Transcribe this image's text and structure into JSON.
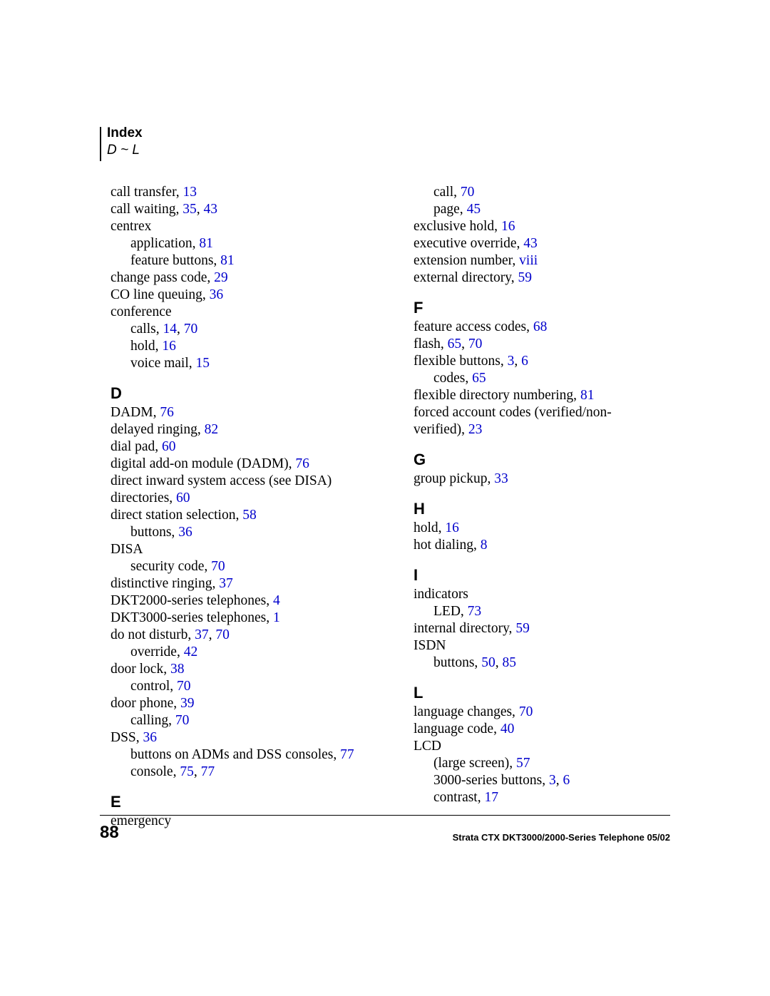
{
  "link_color": "#0000cc",
  "text_color": "#000000",
  "header": {
    "title": "Index",
    "range": "D ~ L"
  },
  "footer": {
    "page_number": "88",
    "doc": "Strata CTX DKT3000/2000-Series Telephone    05/02"
  },
  "left": [
    {
      "t": "entry",
      "parts": [
        [
          "call transfer,  ",
          false
        ],
        [
          "13",
          true
        ]
      ]
    },
    {
      "t": "entry",
      "parts": [
        [
          "call waiting,  ",
          false
        ],
        [
          "35",
          true
        ],
        [
          ", ",
          false
        ],
        [
          "43",
          true
        ]
      ]
    },
    {
      "t": "entry",
      "parts": [
        [
          "centrex",
          false
        ]
      ]
    },
    {
      "t": "entry",
      "indent": 1,
      "parts": [
        [
          "application,  ",
          false
        ],
        [
          "81",
          true
        ]
      ]
    },
    {
      "t": "entry",
      "indent": 1,
      "parts": [
        [
          "feature buttons,  ",
          false
        ],
        [
          "81",
          true
        ]
      ]
    },
    {
      "t": "entry",
      "parts": [
        [
          "change pass code,  ",
          false
        ],
        [
          "29",
          true
        ]
      ]
    },
    {
      "t": "entry",
      "parts": [
        [
          "CO line queuing,  ",
          false
        ],
        [
          "36",
          true
        ]
      ]
    },
    {
      "t": "entry",
      "parts": [
        [
          "conference",
          false
        ]
      ]
    },
    {
      "t": "entry",
      "indent": 1,
      "parts": [
        [
          "calls,  ",
          false
        ],
        [
          "14",
          true
        ],
        [
          ", ",
          false
        ],
        [
          "70",
          true
        ]
      ]
    },
    {
      "t": "entry",
      "indent": 1,
      "parts": [
        [
          "hold,  ",
          false
        ],
        [
          "16",
          true
        ]
      ]
    },
    {
      "t": "entry",
      "indent": 1,
      "parts": [
        [
          "voice mail,  ",
          false
        ],
        [
          "15",
          true
        ]
      ]
    },
    {
      "t": "section",
      "label": "D"
    },
    {
      "t": "entry",
      "parts": [
        [
          "DADM,  ",
          false
        ],
        [
          "76",
          true
        ]
      ]
    },
    {
      "t": "entry",
      "parts": [
        [
          "delayed ringing,  ",
          false
        ],
        [
          "82",
          true
        ]
      ]
    },
    {
      "t": "entry",
      "parts": [
        [
          "dial pad,  ",
          false
        ],
        [
          "60",
          true
        ]
      ]
    },
    {
      "t": "entry",
      "parts": [
        [
          "digital add-on module (DADM),  ",
          false
        ],
        [
          "76",
          true
        ]
      ]
    },
    {
      "t": "entry",
      "parts": [
        [
          "direct inward system access  (see DISA)",
          false
        ]
      ]
    },
    {
      "t": "entry",
      "parts": [
        [
          "directories,  ",
          false
        ],
        [
          "60",
          true
        ]
      ]
    },
    {
      "t": "entry",
      "parts": [
        [
          "direct station selection,  ",
          false
        ],
        [
          "58",
          true
        ]
      ]
    },
    {
      "t": "entry",
      "indent": 1,
      "parts": [
        [
          "buttons,  ",
          false
        ],
        [
          "36",
          true
        ]
      ]
    },
    {
      "t": "entry",
      "parts": [
        [
          "DISA",
          false
        ]
      ]
    },
    {
      "t": "entry",
      "indent": 1,
      "parts": [
        [
          "security code,  ",
          false
        ],
        [
          "70",
          true
        ]
      ]
    },
    {
      "t": "entry",
      "parts": [
        [
          "distinctive ringing,  ",
          false
        ],
        [
          "37",
          true
        ]
      ]
    },
    {
      "t": "entry",
      "parts": [
        [
          "DKT2000-series telephones,  ",
          false
        ],
        [
          "4",
          true
        ]
      ]
    },
    {
      "t": "entry",
      "parts": [
        [
          "DKT3000-series telephones,  ",
          false
        ],
        [
          "1",
          true
        ]
      ]
    },
    {
      "t": "entry",
      "parts": [
        [
          "do not disturb,  ",
          false
        ],
        [
          "37",
          true
        ],
        [
          ", ",
          false
        ],
        [
          "70",
          true
        ]
      ]
    },
    {
      "t": "entry",
      "indent": 1,
      "parts": [
        [
          "override,  ",
          false
        ],
        [
          "42",
          true
        ]
      ]
    },
    {
      "t": "entry",
      "parts": [
        [
          "door lock,  ",
          false
        ],
        [
          "38",
          true
        ]
      ]
    },
    {
      "t": "entry",
      "indent": 1,
      "parts": [
        [
          "control,  ",
          false
        ],
        [
          "70",
          true
        ]
      ]
    },
    {
      "t": "entry",
      "parts": [
        [
          "door phone,  ",
          false
        ],
        [
          "39",
          true
        ]
      ]
    },
    {
      "t": "entry",
      "indent": 1,
      "parts": [
        [
          "calling,  ",
          false
        ],
        [
          "70",
          true
        ]
      ]
    },
    {
      "t": "entry",
      "parts": [
        [
          "DSS,  ",
          false
        ],
        [
          "36",
          true
        ]
      ]
    },
    {
      "t": "entry",
      "indent": 1,
      "parts": [
        [
          "buttons on ADMs and DSS consoles,  ",
          false
        ],
        [
          "77",
          true
        ]
      ]
    },
    {
      "t": "entry",
      "indent": 1,
      "parts": [
        [
          "console,  ",
          false
        ],
        [
          "75",
          true
        ],
        [
          ", ",
          false
        ],
        [
          "77",
          true
        ]
      ]
    },
    {
      "t": "section",
      "label": "E"
    },
    {
      "t": "entry",
      "parts": [
        [
          "emergency",
          false
        ]
      ]
    }
  ],
  "right": [
    {
      "t": "entry",
      "indent": 1,
      "parts": [
        [
          "call,  ",
          false
        ],
        [
          "70",
          true
        ]
      ]
    },
    {
      "t": "entry",
      "indent": 1,
      "parts": [
        [
          "page,  ",
          false
        ],
        [
          "45",
          true
        ]
      ]
    },
    {
      "t": "entry",
      "parts": [
        [
          "exclusive hold,  ",
          false
        ],
        [
          "16",
          true
        ]
      ]
    },
    {
      "t": "entry",
      "parts": [
        [
          "executive override,  ",
          false
        ],
        [
          "43",
          true
        ]
      ]
    },
    {
      "t": "entry",
      "parts": [
        [
          "extension number,  ",
          false
        ],
        [
          "viii",
          true
        ]
      ]
    },
    {
      "t": "entry",
      "parts": [
        [
          "external directory,  ",
          false
        ],
        [
          "59",
          true
        ]
      ]
    },
    {
      "t": "section",
      "label": "F"
    },
    {
      "t": "entry",
      "parts": [
        [
          "feature access codes,  ",
          false
        ],
        [
          "68",
          true
        ]
      ]
    },
    {
      "t": "entry",
      "parts": [
        [
          "flash,  ",
          false
        ],
        [
          "65",
          true
        ],
        [
          ", ",
          false
        ],
        [
          "70",
          true
        ]
      ]
    },
    {
      "t": "entry",
      "parts": [
        [
          "flexible buttons,  ",
          false
        ],
        [
          "3",
          true
        ],
        [
          ", ",
          false
        ],
        [
          "6",
          true
        ]
      ]
    },
    {
      "t": "entry",
      "indent": 1,
      "parts": [
        [
          "codes,  ",
          false
        ],
        [
          "65",
          true
        ]
      ]
    },
    {
      "t": "entry",
      "parts": [
        [
          "flexible directory numbering,  ",
          false
        ],
        [
          "81",
          true
        ]
      ]
    },
    {
      "t": "entry",
      "parts": [
        [
          "forced account codes (verified/non-",
          false
        ]
      ]
    },
    {
      "t": "entry",
      "parts": [
        [
          "verified),  ",
          false
        ],
        [
          "23",
          true
        ]
      ]
    },
    {
      "t": "section",
      "label": "G"
    },
    {
      "t": "entry",
      "parts": [
        [
          "group pickup,  ",
          false
        ],
        [
          "33",
          true
        ]
      ]
    },
    {
      "t": "section",
      "label": "H"
    },
    {
      "t": "entry",
      "parts": [
        [
          "hold,  ",
          false
        ],
        [
          "16",
          true
        ]
      ]
    },
    {
      "t": "entry",
      "parts": [
        [
          "hot dialing,  ",
          false
        ],
        [
          "8",
          true
        ]
      ]
    },
    {
      "t": "section",
      "label": "I"
    },
    {
      "t": "entry",
      "parts": [
        [
          "indicators",
          false
        ]
      ]
    },
    {
      "t": "entry",
      "indent": 1,
      "parts": [
        [
          "LED,  ",
          false
        ],
        [
          "73",
          true
        ]
      ]
    },
    {
      "t": "entry",
      "parts": [
        [
          "internal directory,  ",
          false
        ],
        [
          "59",
          true
        ]
      ]
    },
    {
      "t": "entry",
      "parts": [
        [
          "ISDN",
          false
        ]
      ]
    },
    {
      "t": "entry",
      "indent": 1,
      "parts": [
        [
          "buttons,  ",
          false
        ],
        [
          "50",
          true
        ],
        [
          ", ",
          false
        ],
        [
          "85",
          true
        ]
      ]
    },
    {
      "t": "section",
      "label": "L"
    },
    {
      "t": "entry",
      "parts": [
        [
          "language changes,  ",
          false
        ],
        [
          "70",
          true
        ]
      ]
    },
    {
      "t": "entry",
      "parts": [
        [
          "language code,  ",
          false
        ],
        [
          "40",
          true
        ]
      ]
    },
    {
      "t": "entry",
      "parts": [
        [
          "LCD",
          false
        ]
      ]
    },
    {
      "t": "entry",
      "indent": 1,
      "parts": [
        [
          "(large screen),  ",
          false
        ],
        [
          "57",
          true
        ]
      ]
    },
    {
      "t": "entry",
      "indent": 1,
      "parts": [
        [
          "3000-series buttons,  ",
          false
        ],
        [
          "3",
          true
        ],
        [
          ", ",
          false
        ],
        [
          "6",
          true
        ]
      ]
    },
    {
      "t": "entry",
      "indent": 1,
      "parts": [
        [
          "contrast,  ",
          false
        ],
        [
          "17",
          true
        ]
      ]
    }
  ]
}
